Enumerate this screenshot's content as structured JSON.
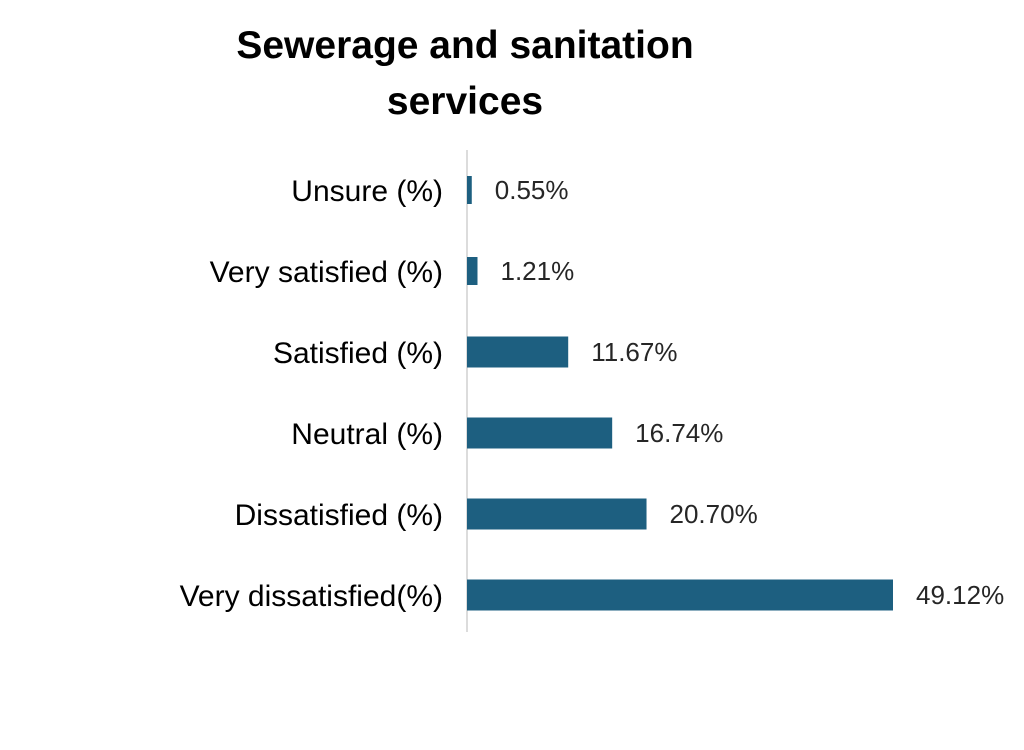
{
  "chart_data": {
    "type": "bar",
    "orientation": "horizontal",
    "title": "Sewerage and sanitation services",
    "categories": [
      "Unsure (%)",
      "Very satisfied (%)",
      "Satisfied (%)",
      "Neutral (%)",
      "Dissatisfied (%)",
      "Very dissatisfied(%)"
    ],
    "values": [
      0.55,
      1.21,
      11.67,
      16.74,
      20.7,
      49.12
    ],
    "value_labels": [
      "0.55%",
      "1.21%",
      "11.67%",
      "16.74%",
      "20.70%",
      "49.12%"
    ],
    "xlim": [
      0,
      49.12
    ],
    "grid": false,
    "legend": "none",
    "colors": {
      "bar": "#1d5f80",
      "axis": "#d0d0d0",
      "category_text": "#000000",
      "value_text": "#262626"
    }
  }
}
